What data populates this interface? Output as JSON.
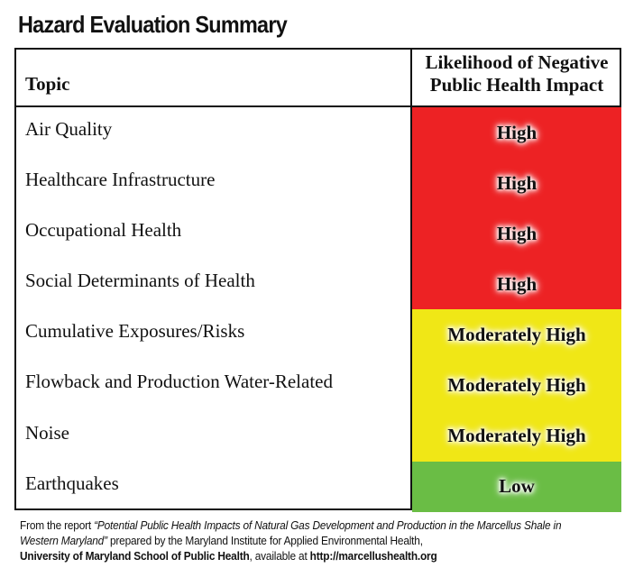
{
  "title": "Hazard Evaluation Summary",
  "table": {
    "header_topic": "Topic",
    "header_likelihood_line1": "Likelihood of Negative",
    "header_likelihood_line2": "Public Health Impact",
    "rows": [
      {
        "topic": "Air Quality",
        "rating": "High",
        "color": "#ed2224"
      },
      {
        "topic": "Healthcare Infrastructure",
        "rating": "High",
        "color": "#ed2224"
      },
      {
        "topic": "Occupational Health",
        "rating": "High",
        "color": "#ed2224"
      },
      {
        "topic": "Social Determinants of Health",
        "rating": "High",
        "color": "#ed2224"
      },
      {
        "topic": "Cumulative Exposures/Risks",
        "rating": "Moderately High",
        "color": "#f0e716"
      },
      {
        "topic": "Flowback and Production Water-Related",
        "rating": "Moderately High",
        "color": "#f0e716"
      },
      {
        "topic": "Noise",
        "rating": "Moderately High",
        "color": "#f0e716"
      },
      {
        "topic": "Earthquakes",
        "rating": "Low",
        "color": "#6abd45"
      }
    ]
  },
  "footer": {
    "prefix": "From the report ",
    "report_title": "“Potential Public Health Impacts of Natural Gas Development and Production in the Marcellus Shale in Western Maryland”",
    "middle": " prepared by the Maryland Institute for Applied Environmental Health,",
    "school": "University of Maryland School of Public Health",
    "available": ", available at ",
    "url": "http://marcellushealth.org"
  }
}
